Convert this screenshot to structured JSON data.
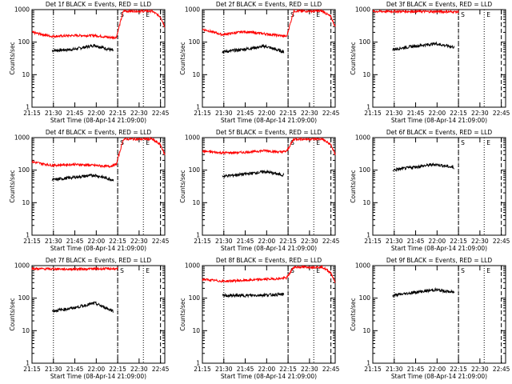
{
  "figure": {
    "xlabel": "Start Time (08-Apr-14 21:09:00)",
    "ylabel": "Counts/sec",
    "x_ticks": [
      "21:15",
      "21:30",
      "21:45",
      "22:00",
      "22:15",
      "22:30",
      "22:45"
    ],
    "y_ticks": [
      "1",
      "10",
      "100",
      "1000"
    ],
    "x_range_min": [
      6,
      99
    ],
    "y_range": [
      1,
      1000
    ],
    "y_scale": "log",
    "event_lines_min": {
      "dotted": [
        21,
        66,
        84
      ],
      "dashed": [
        66,
        96
      ]
    },
    "event_labels": [
      {
        "text": "S",
        "at_min": 66
      },
      {
        "text": "E",
        "at_min": 84
      }
    ],
    "colors": {
      "events": "#000000",
      "lld": "#ff0000"
    }
  },
  "chart_data": [
    {
      "type": "line",
      "title": "Det 1f BLACK = Events, RED = LLD",
      "series": [
        {
          "name": "BLACK = Events",
          "color": "#000000",
          "x": [
            20,
            35,
            50,
            63
          ],
          "y": [
            55,
            60,
            80,
            55
          ]
        },
        {
          "name": "RED = LLD",
          "color": "#ff0000",
          "x": [
            6,
            20,
            35,
            50,
            60,
            65,
            70,
            90,
            96,
            99
          ],
          "y": [
            200,
            150,
            160,
            160,
            140,
            140,
            900,
            900,
            600,
            300
          ]
        }
      ]
    },
    {
      "type": "line",
      "title": "Det 2f BLACK = Events, RED = LLD",
      "series": [
        {
          "name": "BLACK = Events",
          "color": "#000000",
          "x": [
            20,
            35,
            50,
            63
          ],
          "y": [
            50,
            60,
            75,
            50
          ]
        },
        {
          "name": "RED = LLD",
          "color": "#ff0000",
          "x": [
            6,
            20,
            35,
            50,
            60,
            65,
            70,
            90,
            96,
            99
          ],
          "y": [
            250,
            170,
            210,
            180,
            160,
            150,
            900,
            900,
            600,
            300
          ]
        }
      ]
    },
    {
      "type": "line",
      "title": "Det 3f BLACK = Events, RED = LLD",
      "series": [
        {
          "name": "BLACK = Events",
          "color": "#000000",
          "x": [
            20,
            35,
            50,
            63
          ],
          "y": [
            60,
            75,
            90,
            70
          ]
        },
        {
          "name": "RED = LLD",
          "color": "#ff0000",
          "x": [
            6,
            30,
            63,
            66
          ],
          "y": [
            880,
            880,
            860,
            850
          ]
        }
      ]
    },
    {
      "type": "line",
      "title": "Det 4f BLACK = Events, RED = LLD",
      "series": [
        {
          "name": "BLACK = Events",
          "color": "#000000",
          "x": [
            20,
            35,
            50,
            63
          ],
          "y": [
            50,
            60,
            70,
            50
          ]
        },
        {
          "name": "RED = LLD",
          "color": "#ff0000",
          "x": [
            6,
            20,
            35,
            50,
            60,
            65,
            70,
            90,
            96,
            99
          ],
          "y": [
            180,
            140,
            150,
            140,
            130,
            150,
            900,
            900,
            600,
            300
          ]
        }
      ]
    },
    {
      "type": "line",
      "title": "Det 5f BLACK = Events, RED = LLD",
      "series": [
        {
          "name": "BLACK = Events",
          "color": "#000000",
          "x": [
            20,
            35,
            50,
            63
          ],
          "y": [
            65,
            75,
            90,
            70
          ]
        },
        {
          "name": "RED = LLD",
          "color": "#ff0000",
          "x": [
            6,
            20,
            35,
            50,
            60,
            65,
            70,
            90,
            96,
            99
          ],
          "y": [
            380,
            340,
            350,
            400,
            360,
            380,
            900,
            900,
            600,
            300
          ]
        }
      ]
    },
    {
      "type": "line",
      "title": "Det 6f BLACK = Events, RED = LLD",
      "series": [
        {
          "name": "BLACK = Events",
          "color": "#000000",
          "x": [
            20,
            35,
            50,
            63
          ],
          "y": [
            100,
            125,
            150,
            120
          ]
        }
      ]
    },
    {
      "type": "line",
      "title": "Det 7f BLACK = Events, RED = LLD",
      "series": [
        {
          "name": "BLACK = Events",
          "color": "#000000",
          "x": [
            20,
            35,
            50,
            63
          ],
          "y": [
            40,
            50,
            70,
            40
          ]
        },
        {
          "name": "RED = LLD",
          "color": "#ff0000",
          "x": [
            6,
            30,
            63,
            66
          ],
          "y": [
            800,
            780,
            800,
            780
          ]
        }
      ]
    },
    {
      "type": "line",
      "title": "Det 8f BLACK = Events, RED = LLD",
      "series": [
        {
          "name": "BLACK = Events",
          "color": "#000000",
          "x": [
            20,
            35,
            50,
            63
          ],
          "y": [
            120,
            120,
            125,
            130
          ]
        },
        {
          "name": "RED = LLD",
          "color": "#ff0000",
          "x": [
            6,
            20,
            35,
            50,
            60,
            65,
            70,
            90,
            96,
            99
          ],
          "y": [
            380,
            330,
            350,
            380,
            400,
            420,
            900,
            900,
            600,
            300
          ]
        }
      ]
    },
    {
      "type": "line",
      "title": "Det 9f BLACK = Events, RED = LLD",
      "series": [
        {
          "name": "BLACK = Events",
          "color": "#000000",
          "x": [
            20,
            35,
            50,
            63
          ],
          "y": [
            120,
            150,
            180,
            150
          ]
        }
      ]
    }
  ]
}
